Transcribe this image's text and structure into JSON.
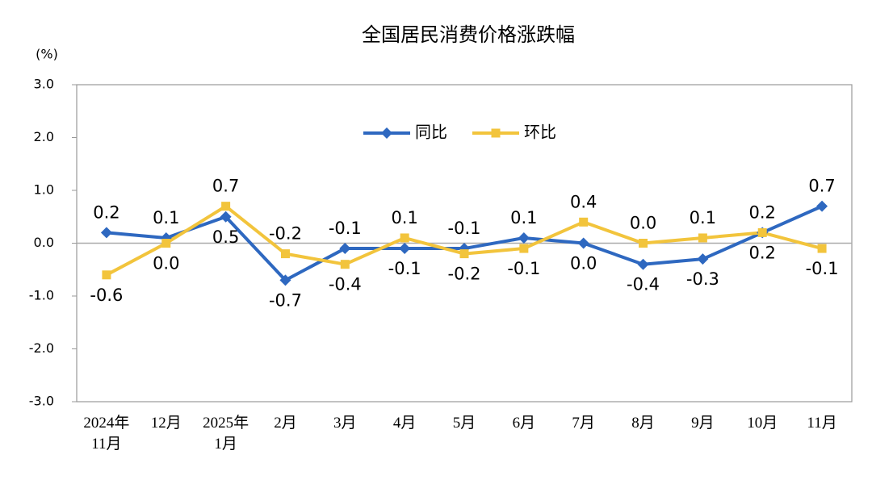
{
  "chart_data": {
    "type": "line",
    "title": "全国居民消费价格涨跌幅",
    "y_label": "(%)",
    "categories": [
      "2024年\n11月",
      "12月",
      "2025年\n1月",
      "2月",
      "3月",
      "4月",
      "5月",
      "6月",
      "7月",
      "8月",
      "9月",
      "10月",
      "11月"
    ],
    "series": [
      {
        "name": "同比",
        "color": "#2e68c0",
        "marker": "diamond",
        "values": [
          0.2,
          0.1,
          0.5,
          -0.7,
          -0.1,
          -0.1,
          -0.1,
          0.1,
          0.0,
          -0.4,
          -0.3,
          0.2,
          0.7
        ],
        "value_labels": [
          "0.2",
          "0.1",
          "0.5",
          "-0.7",
          "-0.1",
          "-0.1",
          "-0.1",
          "0.1",
          "0.0",
          "-0.4",
          "-0.3",
          "0.2",
          "0.7"
        ]
      },
      {
        "name": "环比",
        "color": "#f2c43c",
        "marker": "square",
        "values": [
          -0.6,
          0.0,
          0.7,
          -0.2,
          -0.4,
          0.1,
          -0.2,
          -0.1,
          0.4,
          0.0,
          0.1,
          0.2,
          -0.1
        ],
        "value_labels": [
          "-0.6",
          "0.0",
          "0.7",
          "-0.2",
          "-0.4",
          "0.1",
          "-0.2",
          "-0.1",
          "0.4",
          "0.0",
          "0.1",
          "0.2",
          "-0.1"
        ]
      }
    ],
    "ylim": [
      -3,
      3
    ],
    "yticks": [
      {
        "value": -3,
        "label": "-3.0"
      },
      {
        "value": -2,
        "label": "-2.0"
      },
      {
        "value": -1,
        "label": "-1.0"
      },
      {
        "value": 0,
        "label": "0.0"
      },
      {
        "value": 1,
        "label": "1.0"
      },
      {
        "value": 2,
        "label": "2.0"
      },
      {
        "value": 3,
        "label": "3.0"
      }
    ],
    "legend": "top",
    "grid": false
  }
}
